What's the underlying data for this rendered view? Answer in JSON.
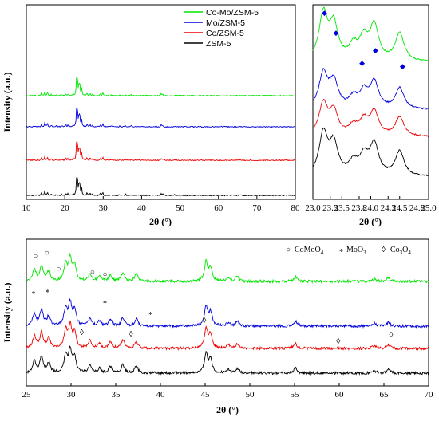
{
  "chart_data": [
    {
      "type": "line",
      "panel": "top-left",
      "xlabel": "2θ (°)",
      "ylabel": "Intensity (a.u.)",
      "xlim": [
        10,
        80
      ],
      "xticks": [
        10,
        20,
        30,
        40,
        50,
        60,
        70,
        80
      ],
      "legend_position": "top-right",
      "series": [
        {
          "name": "Co-Mo/ZSM-5",
          "color": "#00e600",
          "offset": 3
        },
        {
          "name": "Mo/ZSM-5",
          "color": "#0000dd",
          "offset": 2
        },
        {
          "name": "Co/ZSM-5",
          "color": "#ee0000",
          "offset": 1
        },
        {
          "name": "ZSM-5",
          "color": "#000000",
          "offset": 0
        }
      ],
      "peaks": [
        [
          13.9,
          0.35
        ],
        [
          14.8,
          0.6
        ],
        [
          15.5,
          0.45
        ],
        [
          16.5,
          0.2
        ],
        [
          17.8,
          0.12
        ],
        [
          19.2,
          0.15
        ],
        [
          20.3,
          0.25
        ],
        [
          20.8,
          0.2
        ],
        [
          22.2,
          0.15
        ],
        [
          23.1,
          2.4
        ],
        [
          23.3,
          1.8
        ],
        [
          23.7,
          1.2
        ],
        [
          23.9,
          1.4
        ],
        [
          24.4,
          1.0
        ],
        [
          25.8,
          0.3
        ],
        [
          26.6,
          0.35
        ],
        [
          27.3,
          0.2
        ],
        [
          29.3,
          0.3
        ],
        [
          29.9,
          0.4
        ],
        [
          32.1,
          0.12
        ],
        [
          34.3,
          0.1
        ],
        [
          35.8,
          0.15
        ],
        [
          37.3,
          0.12
        ],
        [
          45.1,
          0.25
        ],
        [
          45.5,
          0.2
        ],
        [
          48.6,
          0.1
        ],
        [
          55.1,
          0.08
        ],
        [
          65.5,
          0.06
        ]
      ]
    },
    {
      "type": "line",
      "panel": "top-right",
      "xlabel": "2θ (°)",
      "xlim": [
        23.0,
        25.0
      ],
      "xticks": [
        23.0,
        23.3,
        23.5,
        23.8,
        24.0,
        24.3,
        24.5,
        24.8,
        25.0
      ],
      "xtick_labels": [
        "23.0",
        "23.3",
        "23.5",
        "23.8",
        "24.0",
        "24.3",
        "24.5",
        "24.8",
        "25.0"
      ],
      "series": [
        {
          "name": "Co-Mo/ZSM-5",
          "color": "#00e600",
          "offset": 3
        },
        {
          "name": "Mo/ZSM-5",
          "color": "#0000dd",
          "offset": 2
        },
        {
          "name": "Co/ZSM-5",
          "color": "#ee0000",
          "offset": 1
        },
        {
          "name": "ZSM-5",
          "color": "#000000",
          "offset": 0
        }
      ],
      "peaks": [
        [
          23.18,
          1.0
        ],
        [
          23.36,
          0.75
        ],
        [
          23.7,
          0.3
        ],
        [
          23.88,
          0.45
        ],
        [
          24.06,
          0.75
        ],
        [
          24.5,
          0.6
        ]
      ],
      "markers": {
        "symbol": "◆",
        "color": "#0000dd",
        "x": [
          23.2,
          23.4,
          23.85,
          24.08,
          24.55
        ]
      }
    },
    {
      "type": "line",
      "panel": "bottom",
      "xlabel": "2θ (°)",
      "ylabel": "Intensity (a.u.)",
      "xlim": [
        25,
        70
      ],
      "xticks": [
        25,
        30,
        35,
        40,
        45,
        50,
        55,
        60,
        65,
        70
      ],
      "series": [
        {
          "name": "Co-Mo/ZSM-5",
          "color": "#00e600",
          "offset": 3
        },
        {
          "name": "Mo/ZSM-5",
          "color": "#0000dd",
          "offset": 2
        },
        {
          "name": "Co/ZSM-5",
          "color": "#ee0000",
          "offset": 1
        },
        {
          "name": "ZSM-5",
          "color": "#000000",
          "offset": 0
        }
      ],
      "peaks": [
        [
          25.9,
          0.5
        ],
        [
          26.7,
          0.65
        ],
        [
          27.5,
          0.4
        ],
        [
          29.4,
          0.7
        ],
        [
          29.9,
          0.9
        ],
        [
          30.4,
          0.6
        ],
        [
          32.1,
          0.3
        ],
        [
          33.2,
          0.2
        ],
        [
          34.4,
          0.25
        ],
        [
          35.8,
          0.35
        ],
        [
          37.3,
          0.3
        ],
        [
          45.1,
          0.8
        ],
        [
          45.6,
          0.55
        ],
        [
          47.6,
          0.15
        ],
        [
          48.6,
          0.2
        ],
        [
          55.1,
          0.2
        ],
        [
          63.9,
          0.12
        ],
        [
          65.5,
          0.15
        ]
      ],
      "legend": [
        {
          "symbol": "○",
          "label": "CoMoO",
          "sub": "4"
        },
        {
          "symbol": "*",
          "label": "MoO",
          "sub": "3"
        },
        {
          "symbol": "◊",
          "label": "Co",
          "sub2": "3",
          "label2": "O",
          "sub": "4"
        }
      ],
      "annotations": [
        {
          "symbol": "○",
          "series": 3,
          "x": [
            26.0,
            27.3,
            28.6,
            32.4,
            33.8
          ]
        },
        {
          "symbol": "*",
          "series": 2,
          "x": [
            25.8,
            27.4,
            33.8,
            38.9
          ]
        },
        {
          "symbol": "◊",
          "series": 1,
          "x": [
            31.2,
            36.7,
            44.9,
            59.9,
            65.8
          ]
        }
      ]
    }
  ]
}
